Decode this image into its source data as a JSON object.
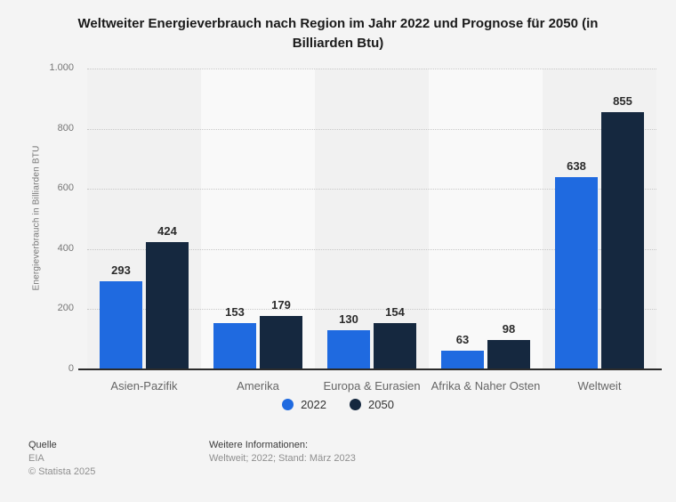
{
  "title": "Weltweiter Energieverbrauch nach Region im Jahr 2022 und Prognose für 2050 (in Billiarden Btu)",
  "chart_data": {
    "type": "bar",
    "categories": [
      "Asien-Pazifik",
      "Amerika",
      "Europa & Eurasien",
      "Afrika & Naher Osten",
      "Weltweit"
    ],
    "series": [
      {
        "name": "2022",
        "color": "#1f6ae0",
        "values": [
          293,
          153,
          130,
          63,
          638
        ]
      },
      {
        "name": "2050",
        "color": "#15283f",
        "values": [
          424,
          179,
          154,
          98,
          855
        ]
      }
    ],
    "title": "Weltweiter Energieverbrauch nach Region im Jahr 2022 und Prognose für 2050 (in Billiarden Btu)",
    "xlabel": "",
    "ylabel": "Energieverbrauch in Billiarden BTU",
    "ylim": [
      0,
      1000
    ],
    "yticks": [
      0,
      200,
      400,
      600,
      800,
      1000
    ],
    "ytick_labels": [
      "0",
      "200",
      "400",
      "600",
      "800",
      "1.000"
    ],
    "grid": "horizontal-dotted",
    "legend_position": "bottom-center"
  },
  "legend": {
    "items": [
      {
        "label": "2022"
      },
      {
        "label": "2050"
      }
    ]
  },
  "footer": {
    "source_label": "Quelle",
    "source_value": "EIA",
    "copyright": "© Statista 2025",
    "info_label": "Weitere Informationen:",
    "info_value": "Weltweit; 2022; Stand: März 2023"
  }
}
